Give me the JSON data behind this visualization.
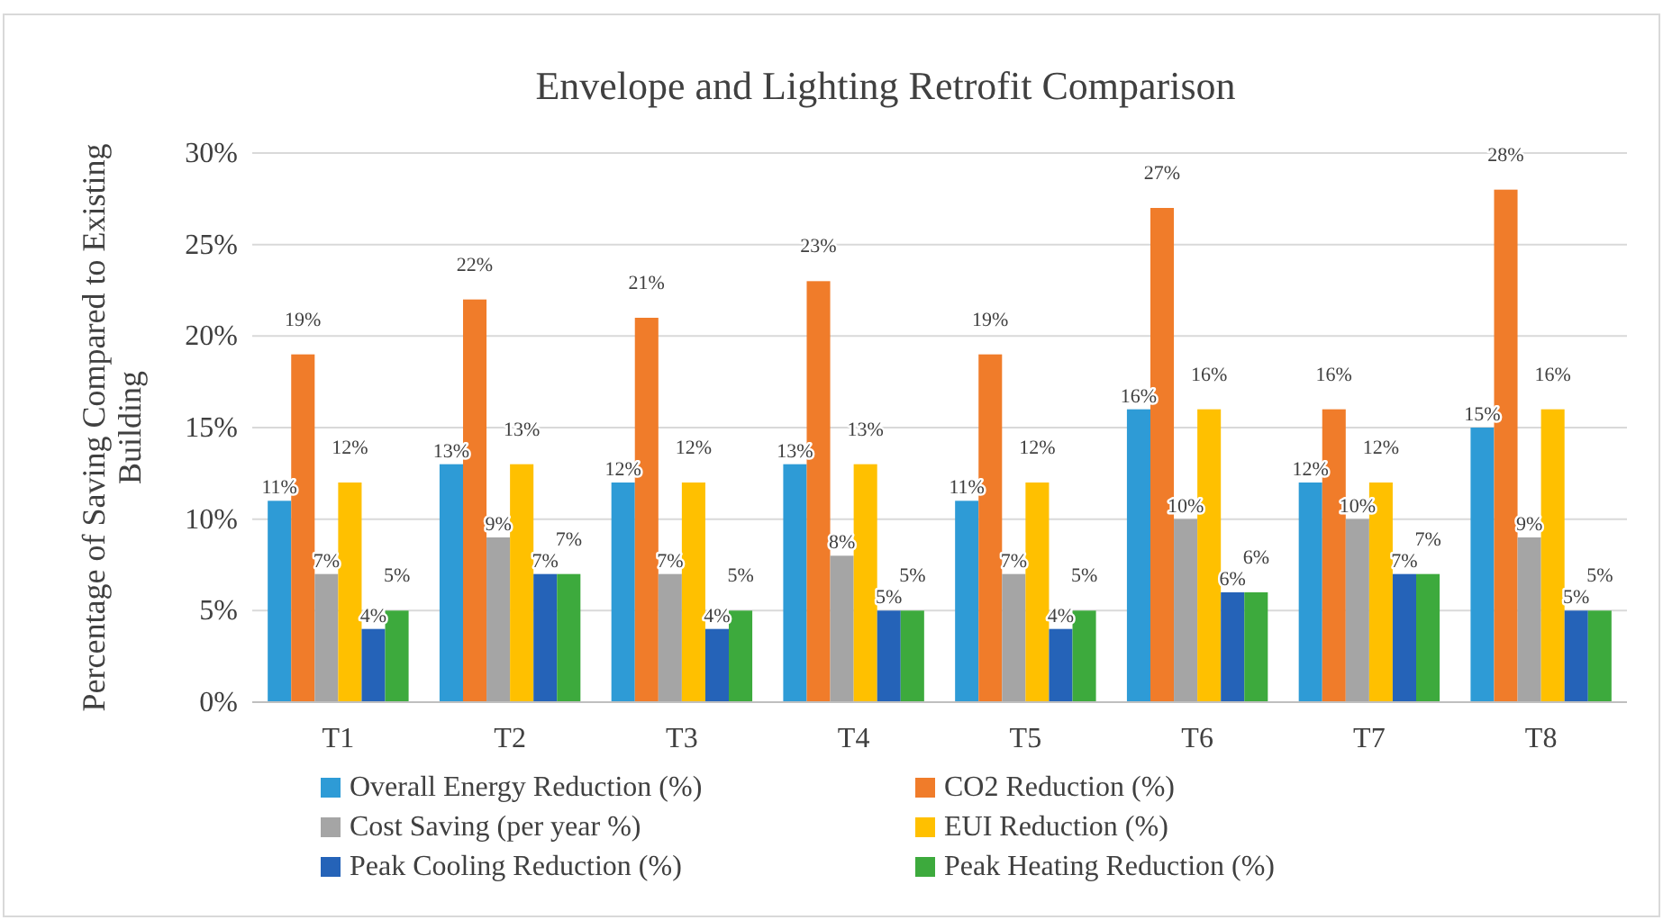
{
  "chart_data": {
    "type": "bar",
    "title": "Envelope and Lighting Retrofit Comparison",
    "ylabel": "Percentage of Saving Compared to Existing Building",
    "categories": [
      "T1",
      "T2",
      "T3",
      "T4",
      "T5",
      "T6",
      "T7",
      "T8"
    ],
    "series": [
      {
        "name": "Overall Energy Reduction (%)",
        "color": "#2e9bd6",
        "values": [
          11,
          13,
          12,
          13,
          11,
          16,
          12,
          15
        ],
        "value_labels": [
          "11%",
          "13%",
          "12%",
          "13%",
          "11%",
          "16%",
          "12%",
          "15%"
        ]
      },
      {
        "name": "CO2 Reduction (%)",
        "color": "#f07c2a",
        "values": [
          19,
          22,
          21,
          23,
          19,
          27,
          16,
          28
        ],
        "value_labels": [
          "19%",
          "22%",
          "21%",
          "23%",
          "19%",
          "27%",
          "16%",
          "28%"
        ]
      },
      {
        "name": "Cost Saving (per year %)",
        "color": "#a5a5a5",
        "values": [
          7,
          9,
          7,
          8,
          7,
          10,
          10,
          9
        ],
        "value_labels": [
          "7%",
          "9%",
          "7%",
          "8%",
          "7%",
          "10%",
          "10%",
          "9%"
        ]
      },
      {
        "name": "EUI Reduction (%)",
        "color": "#ffc000",
        "values": [
          12,
          13,
          12,
          13,
          12,
          16,
          12,
          16
        ],
        "value_labels": [
          "12%",
          "13%",
          "12%",
          "13%",
          "12%",
          "16%",
          "12%",
          "16%"
        ]
      },
      {
        "name": "Peak Cooling Reduction (%)",
        "color": "#2563b8",
        "values": [
          4,
          7,
          4,
          5,
          4,
          6,
          7,
          5
        ],
        "value_labels": [
          "4%",
          "7%",
          "4%",
          "5%",
          "4%",
          "6%",
          "7%",
          "5%"
        ]
      },
      {
        "name": "Peak Heating Reduction (%)",
        "color": "#3daa3d",
        "values": [
          5,
          7,
          5,
          5,
          5,
          6,
          7,
          5
        ],
        "value_labels": [
          "5%",
          "7%",
          "5%",
          "5%",
          "5%",
          "6%",
          "7%",
          "5%"
        ]
      }
    ],
    "ylim": [
      0,
      30
    ],
    "yticks": [
      {
        "value": 0,
        "label": "0%"
      },
      {
        "value": 5,
        "label": "5%"
      },
      {
        "value": 10,
        "label": "10%"
      },
      {
        "value": 15,
        "label": "15%"
      },
      {
        "value": 20,
        "label": "20%"
      },
      {
        "value": 25,
        "label": "25%"
      },
      {
        "value": 30,
        "label": "30%"
      }
    ],
    "grid": "y",
    "legend": "bottom"
  }
}
